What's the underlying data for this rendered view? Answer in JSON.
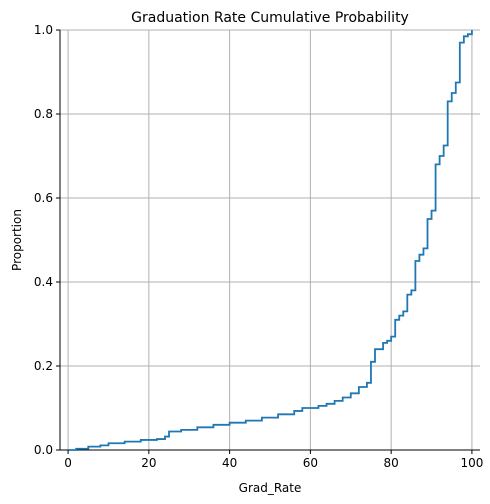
{
  "chart_data": {
    "type": "line",
    "drawstyle": "steps-post",
    "title": "Graduation Rate Cumulative Probability",
    "xlabel": "Grad_Rate",
    "ylabel": "Proportion",
    "xlim": [
      -2,
      102
    ],
    "ylim": [
      0,
      1
    ],
    "xticks": [
      0,
      20,
      40,
      60,
      80,
      100
    ],
    "xtick_labels": [
      "0",
      "20",
      "40",
      "60",
      "80",
      "100"
    ],
    "yticks": [
      0.0,
      0.2,
      0.4,
      0.6,
      0.8,
      1.0
    ],
    "ytick_labels": [
      "0.0",
      "0.2",
      "0.4",
      "0.6",
      "0.8",
      "1.0"
    ],
    "grid": true,
    "legend": "none",
    "color": "#1f77b4",
    "series": [
      {
        "x": [
          0,
          2,
          5,
          8,
          10,
          14,
          18,
          22,
          24,
          25,
          28,
          32,
          36,
          40,
          44,
          48,
          52,
          56,
          58,
          62,
          64,
          66,
          68,
          70,
          72,
          74,
          75,
          76,
          78,
          79,
          80,
          81,
          82,
          83,
          84,
          85,
          86,
          87,
          88,
          89,
          90,
          91,
          92,
          93,
          94,
          95,
          96,
          97,
          98,
          99,
          100
        ],
        "y": [
          0.0,
          0.003,
          0.008,
          0.011,
          0.016,
          0.02,
          0.024,
          0.026,
          0.032,
          0.044,
          0.048,
          0.054,
          0.06,
          0.065,
          0.07,
          0.077,
          0.085,
          0.093,
          0.1,
          0.105,
          0.11,
          0.117,
          0.125,
          0.135,
          0.15,
          0.16,
          0.21,
          0.24,
          0.255,
          0.26,
          0.27,
          0.31,
          0.32,
          0.33,
          0.37,
          0.38,
          0.45,
          0.465,
          0.48,
          0.55,
          0.57,
          0.68,
          0.7,
          0.725,
          0.83,
          0.85,
          0.875,
          0.97,
          0.985,
          0.99,
          1.0
        ]
      }
    ]
  }
}
